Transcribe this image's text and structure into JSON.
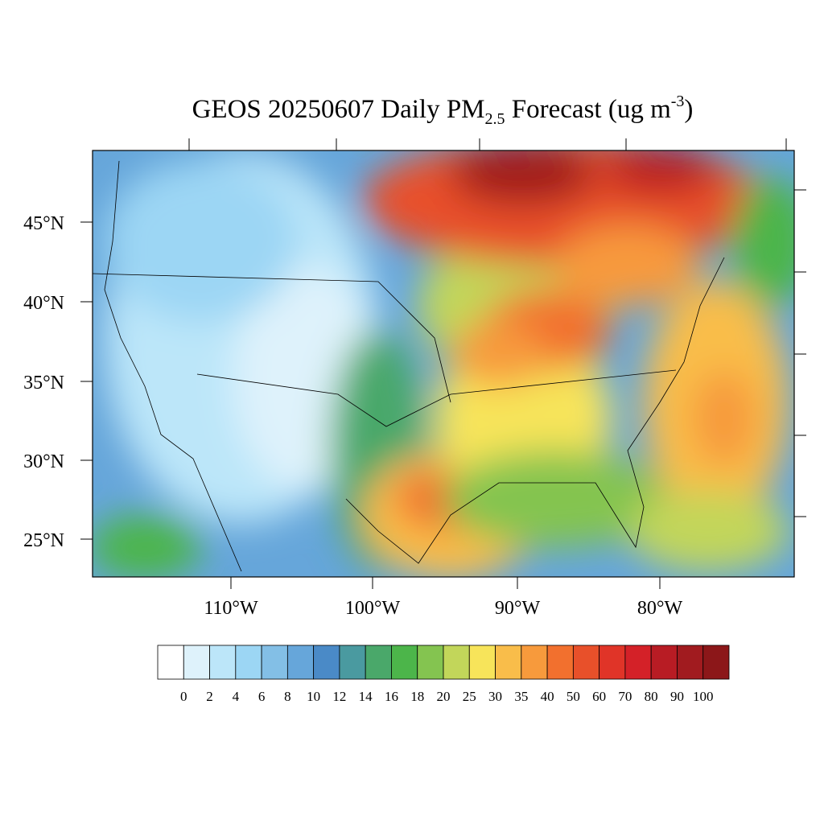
{
  "title": {
    "main": "GEOS 20250607 Daily PM",
    "sub": "2.5",
    "rest": " Forecast (ug m",
    "sup": "-3",
    "end": ")"
  },
  "lat_labels": [
    "45°N",
    "40°N",
    "35°N",
    "30°N",
    "25°N"
  ],
  "lon_labels": [
    "110°W",
    "100°W",
    "90°W",
    "80°W"
  ],
  "colorbar": {
    "levels": [
      0,
      2,
      4,
      6,
      8,
      10,
      12,
      14,
      16,
      18,
      20,
      25,
      30,
      35,
      40,
      50,
      60,
      70,
      80,
      90,
      100
    ],
    "colors": [
      "#ffffff",
      "#def2fb",
      "#bce6f9",
      "#9cd6f4",
      "#83bfe6",
      "#66a6da",
      "#4a8ac7",
      "#4a9aa0",
      "#4aa86a",
      "#4cb54a",
      "#84c450",
      "#c2d65a",
      "#f7e45a",
      "#f9bd4a",
      "#f79a3c",
      "#f2702e",
      "#e8502a",
      "#e03428",
      "#d42128",
      "#b81c24",
      "#a11b1f",
      "#8c1719"
    ]
  }
}
